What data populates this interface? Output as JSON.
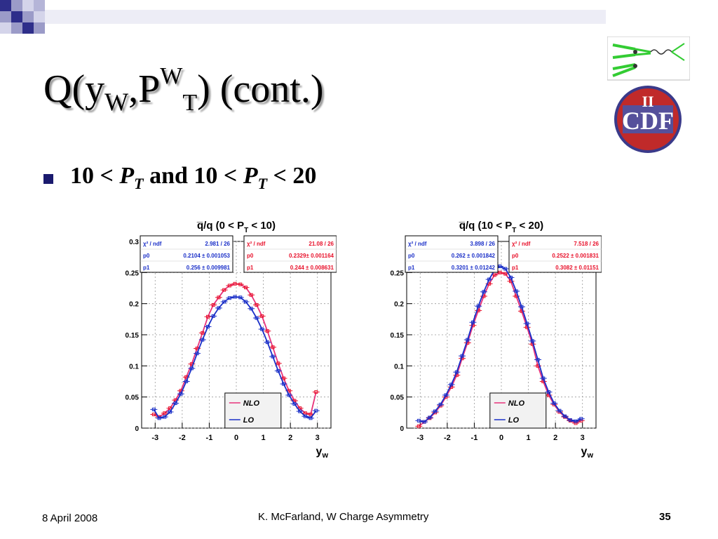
{
  "slide": {
    "title": {
      "p1": "Q(y",
      "sub_w": "W",
      "p2": ",P",
      "sup_w": "W",
      "sub_t": "T",
      "p3": ") (cont.)"
    },
    "bullet": {
      "a": "10 < ",
      "p": "P",
      "t": "T",
      "b": "  and 10 < ",
      "p2": "P",
      "t2": "T",
      "c": " < 20"
    },
    "logo": {
      "label": "CDF",
      "roman": "II"
    },
    "footer": {
      "date": "8 April 2008",
      "center": "K. McFarland, W Charge Asymmetry",
      "page": "35"
    }
  },
  "colors": {
    "nlo": "#e8327a",
    "lo": "#1a2fc8",
    "stat_blue": "#1a2fc8",
    "stat_red": "#e8102a",
    "bullet": "#1a1a6e"
  },
  "chart_data": [
    {
      "type": "line",
      "title": "q̅/q (0 < P",
      "title_sub": "T",
      "title_end": " < 10)",
      "xlabel": "y",
      "xlabel_sub": "w",
      "xlim": [
        -3.5,
        3.5
      ],
      "ylim": [
        0,
        0.3
      ],
      "xticks": [
        "-3",
        "-2",
        "-1",
        "0",
        "1",
        "2",
        "3"
      ],
      "yticks": [
        "0",
        "0.05",
        "0.1",
        "0.15",
        "0.2",
        "0.25",
        "0.3"
      ],
      "ytick_values": [
        0,
        0.05,
        0.1,
        0.15,
        0.2,
        0.25,
        0.3
      ],
      "legend": {
        "placement": "bottom-right",
        "entries": [
          "NLO",
          "LO"
        ]
      },
      "stats": [
        {
          "color": "blue",
          "rows": [
            [
              "χ² / ndf",
              "2.981 / 26"
            ],
            [
              "p0",
              "0.2104 ± 0.001053"
            ],
            [
              "p1",
              "0.256 ± 0.009981"
            ]
          ]
        },
        {
          "color": "red",
          "rows": [
            [
              "χ² / ndf",
              "21.08 / 26"
            ],
            [
              "p0",
              "0.2329± 0.001164"
            ],
            [
              "p1",
              "0.244 ± 0.008631"
            ]
          ]
        }
      ],
      "series": [
        {
          "name": "NLO",
          "color": "nlo",
          "x": [
            -3.05,
            -2.85,
            -2.65,
            -2.45,
            -2.25,
            -2.05,
            -1.85,
            -1.65,
            -1.45,
            -1.25,
            -1.05,
            -0.85,
            -0.65,
            -0.45,
            -0.25,
            -0.05,
            0.15,
            0.35,
            0.55,
            0.75,
            0.95,
            1.15,
            1.35,
            1.55,
            1.75,
            1.95,
            2.15,
            2.35,
            2.55,
            2.75,
            2.95
          ],
          "y": [
            0.022,
            0.018,
            0.024,
            0.032,
            0.045,
            0.06,
            0.082,
            0.103,
            0.128,
            0.153,
            0.179,
            0.198,
            0.21,
            0.222,
            0.229,
            0.232,
            0.231,
            0.226,
            0.214,
            0.198,
            0.18,
            0.156,
            0.13,
            0.104,
            0.08,
            0.06,
            0.044,
            0.032,
            0.024,
            0.022,
            0.058
          ]
        },
        {
          "name": "LO",
          "color": "lo",
          "x": [
            -3.05,
            -2.85,
            -2.65,
            -2.45,
            -2.25,
            -2.05,
            -1.85,
            -1.65,
            -1.45,
            -1.25,
            -1.05,
            -0.85,
            -0.65,
            -0.45,
            -0.25,
            -0.05,
            0.15,
            0.35,
            0.55,
            0.75,
            0.95,
            1.15,
            1.35,
            1.55,
            1.75,
            1.95,
            2.15,
            2.35,
            2.55,
            2.75,
            2.95
          ],
          "y": [
            0.03,
            0.016,
            0.018,
            0.026,
            0.04,
            0.055,
            0.075,
            0.096,
            0.12,
            0.142,
            0.163,
            0.18,
            0.193,
            0.203,
            0.209,
            0.211,
            0.21,
            0.203,
            0.192,
            0.177,
            0.159,
            0.138,
            0.115,
            0.092,
            0.071,
            0.053,
            0.039,
            0.027,
            0.019,
            0.016,
            0.028
          ]
        }
      ]
    },
    {
      "type": "line",
      "title": "q̅/q (10 < P",
      "title_sub": "T",
      "title_end": " < 20)",
      "xlabel": "y",
      "xlabel_sub": "w",
      "xlim": [
        -3.5,
        3.5
      ],
      "ylim": [
        0,
        0.3
      ],
      "xticks": [
        "-3",
        "-2",
        "-1",
        "0",
        "1",
        "2",
        "3"
      ],
      "yticks": [
        "0",
        "0.05",
        "0.1",
        "0.15",
        "0.2",
        "0.25"
      ],
      "ytick_values": [
        0,
        0.05,
        0.1,
        0.15,
        0.2,
        0.25
      ],
      "legend": {
        "placement": "bottom-right",
        "entries": [
          "NLO",
          "LO"
        ]
      },
      "stats": [
        {
          "color": "blue",
          "rows": [
            [
              "χ² / ndf",
              "3.898 / 26"
            ],
            [
              "p0",
              "0.262 ± 0.001842"
            ],
            [
              "p1",
              "0.3201 ± 0.01242"
            ]
          ]
        },
        {
          "color": "red",
          "rows": [
            [
              "χ² / ndf",
              "7.518 / 26"
            ],
            [
              "p0",
              "0.2522 ± 0.001831"
            ],
            [
              "p1",
              "0.3082 ± 0.01151"
            ]
          ]
        }
      ],
      "series": [
        {
          "name": "NLO",
          "color": "nlo",
          "x": [
            -3.05,
            -2.85,
            -2.65,
            -2.45,
            -2.25,
            -2.05,
            -1.85,
            -1.65,
            -1.45,
            -1.25,
            -1.05,
            -0.85,
            -0.65,
            -0.45,
            -0.25,
            -0.05,
            0.15,
            0.35,
            0.55,
            0.75,
            0.95,
            1.15,
            1.35,
            1.55,
            1.75,
            1.95,
            2.15,
            2.35,
            2.55,
            2.75,
            2.95
          ],
          "y": [
            0.003,
            0.01,
            0.016,
            0.025,
            0.036,
            0.05,
            0.066,
            0.085,
            0.112,
            0.137,
            0.165,
            0.189,
            0.212,
            0.232,
            0.246,
            0.25,
            0.248,
            0.236,
            0.212,
            0.188,
            0.162,
            0.135,
            0.1,
            0.075,
            0.053,
            0.038,
            0.026,
            0.018,
            0.012,
            0.008,
            0.012
          ]
        },
        {
          "name": "LO",
          "color": "lo",
          "x": [
            -3.05,
            -2.85,
            -2.65,
            -2.45,
            -2.25,
            -2.05,
            -1.85,
            -1.65,
            -1.45,
            -1.25,
            -1.05,
            -0.85,
            -0.65,
            -0.45,
            -0.25,
            -0.05,
            0.15,
            0.35,
            0.55,
            0.75,
            0.95,
            1.15,
            1.35,
            1.55,
            1.75,
            1.95,
            2.15,
            2.35,
            2.55,
            2.75,
            2.95
          ],
          "y": [
            0.012,
            0.01,
            0.017,
            0.027,
            0.038,
            0.053,
            0.07,
            0.09,
            0.116,
            0.142,
            0.17,
            0.196,
            0.219,
            0.239,
            0.254,
            0.26,
            0.256,
            0.242,
            0.22,
            0.195,
            0.168,
            0.14,
            0.11,
            0.08,
            0.058,
            0.04,
            0.028,
            0.019,
            0.013,
            0.011,
            0.015
          ]
        }
      ]
    }
  ]
}
